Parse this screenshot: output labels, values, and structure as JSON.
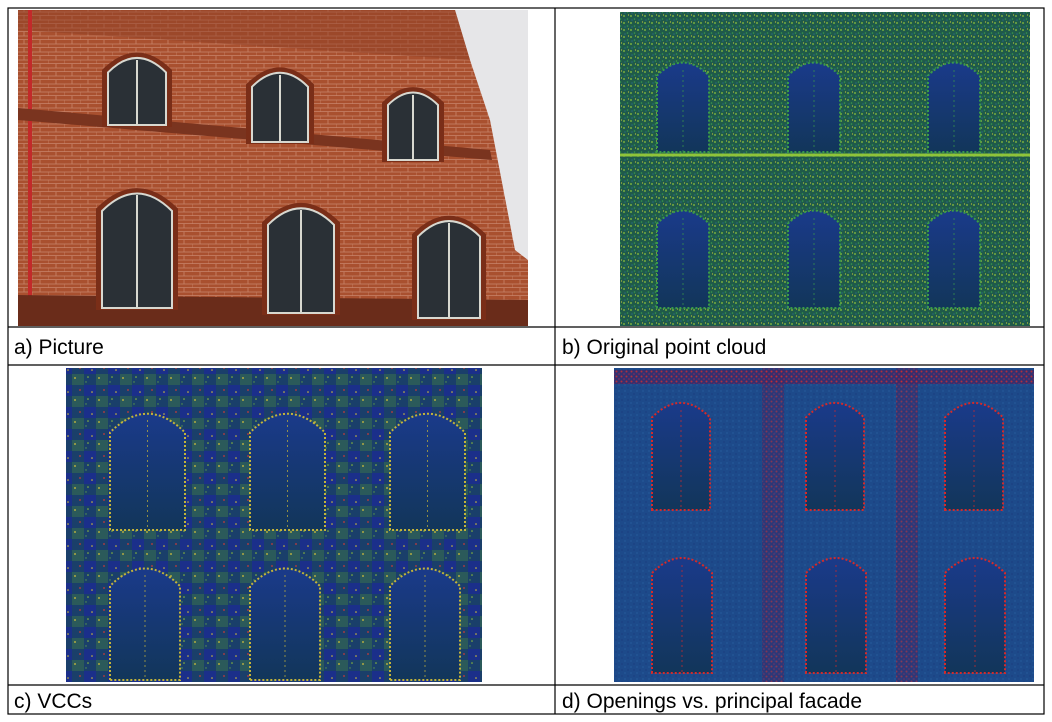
{
  "panels": [
    {
      "caption": "a) Picture"
    },
    {
      "caption": "b) Original point cloud"
    },
    {
      "caption": "c) VCCs"
    },
    {
      "caption": "d) Openings vs. principal facade"
    }
  ]
}
